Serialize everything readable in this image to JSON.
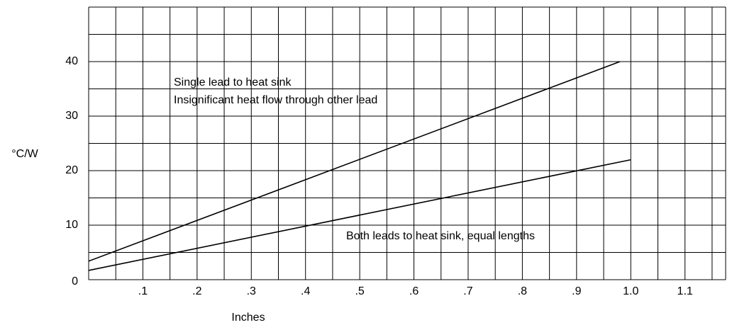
{
  "chart_data": {
    "type": "line",
    "xlabel": "Inches",
    "ylabel": "°C/W",
    "xlim": [
      0,
      1.175
    ],
    "ylim": [
      0,
      50
    ],
    "xticks": [
      {
        "value": 0.1,
        "label": ".1"
      },
      {
        "value": 0.2,
        "label": ".2"
      },
      {
        "value": 0.3,
        "label": ".3"
      },
      {
        "value": 0.4,
        "label": ".4"
      },
      {
        "value": 0.5,
        "label": ".5"
      },
      {
        "value": 0.6,
        "label": ".6"
      },
      {
        "value": 0.7,
        "label": ".7"
      },
      {
        "value": 0.8,
        "label": ".8"
      },
      {
        "value": 0.9,
        "label": ".9"
      },
      {
        "value": 1,
        "label": "1.0"
      },
      1.1
    ],
    "yticks": [
      0,
      10,
      20,
      30,
      40
    ],
    "minor_xticks": [
      0.05,
      0.15,
      0.25,
      0.35,
      0.45,
      0.55,
      0.65,
      0.75,
      0.85,
      0.95,
      1.05,
      1.15
    ],
    "minor_yticks": [
      5,
      15,
      25,
      35,
      45
    ],
    "grid": true,
    "series": [
      {
        "color": "#000000",
        "x": [
          0,
          0.98
        ],
        "values": [
          3.4,
          40
        ]
      },
      {
        "color": "#000000",
        "x": [
          0,
          1.0
        ],
        "values": [
          1.7,
          22
        ]
      }
    ],
    "annotations": [
      "Single lead to heat sink",
      "Insignificant heat flow through other lead",
      "Both leads to heat sink, equal lengths"
    ]
  }
}
